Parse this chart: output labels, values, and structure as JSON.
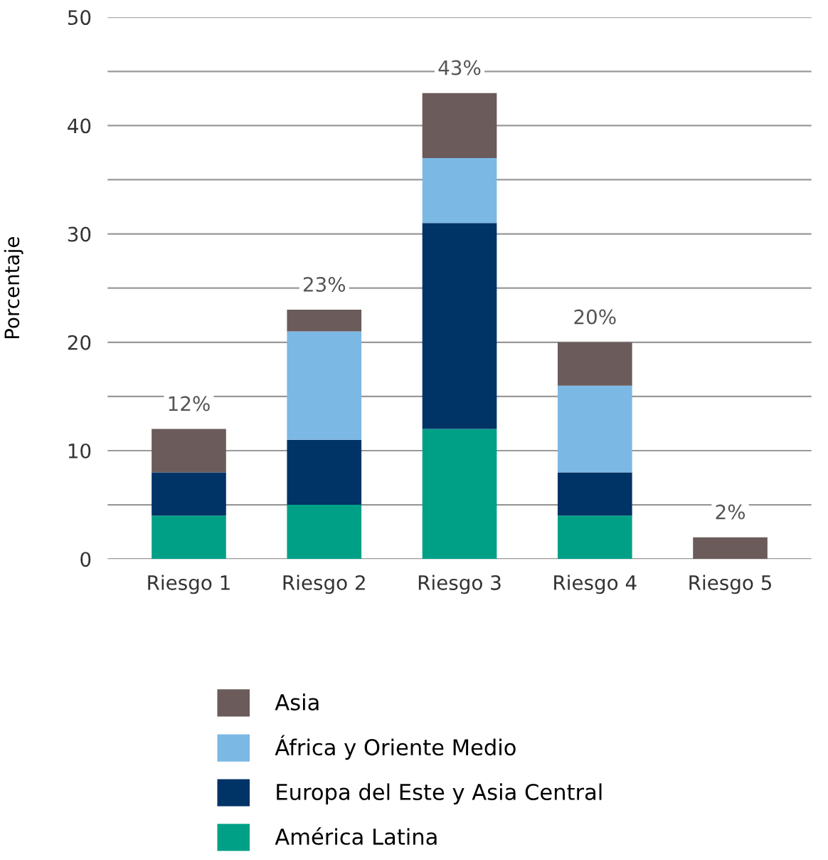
{
  "chart_data": {
    "type": "bar",
    "stacked": true,
    "ylabel": "Porcentaje",
    "categories": [
      "Riesgo 1",
      "Riesgo 2",
      "Riesgo 3",
      "Riesgo 4",
      "Riesgo 5"
    ],
    "series": [
      {
        "name": "América Latina",
        "color": "#00a087",
        "values": [
          4,
          5,
          12,
          4,
          0
        ]
      },
      {
        "name": "Europa del Este y Asia Central",
        "color": "#003366",
        "values": [
          4,
          6,
          19,
          4,
          0
        ]
      },
      {
        "name": "África y Oriente Medio",
        "color": "#7cb8e4",
        "values": [
          0,
          10,
          6,
          8,
          0
        ]
      },
      {
        "name": "Asia",
        "color": "#6b5b5b",
        "values": [
          4,
          2,
          6,
          4,
          2
        ]
      }
    ],
    "totals": [
      "12%",
      "23%",
      "43%",
      "20%",
      "2%"
    ],
    "ylim": [
      0,
      50
    ],
    "yticks": [
      0,
      {
        "value": 5,
        "label": null
      },
      10,
      {
        "value": 15,
        "label": null
      },
      20,
      {
        "value": 25,
        "label": null
      },
      30,
      {
        "value": 35,
        "label": null
      },
      40,
      {
        "value": 45,
        "label": null
      },
      50
    ],
    "grid": "y",
    "legend": "bottom"
  }
}
